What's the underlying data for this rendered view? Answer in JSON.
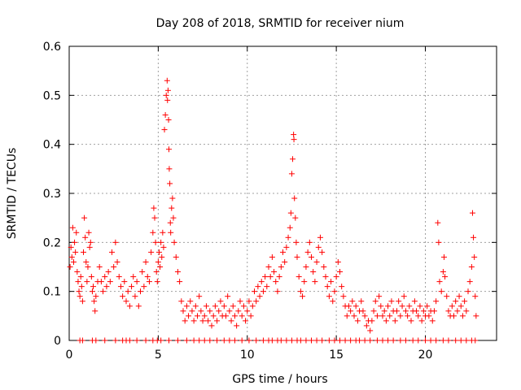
{
  "chart_data": {
    "type": "scatter",
    "title": "Day 208 of 2018, SRMTID for receiver nium",
    "xlabel": "GPS time / hours",
    "ylabel": "SRMTID / TECUs",
    "xlim": [
      0,
      24
    ],
    "ylim": [
      0,
      0.6
    ],
    "xticks": [
      0,
      5,
      10,
      15,
      20
    ],
    "yticks": [
      0,
      0.1,
      0.2,
      0.3,
      0.4,
      0.5,
      0.6
    ],
    "xtick_labels": [
      "0",
      "5",
      "10",
      "15",
      "20"
    ],
    "ytick_labels": [
      "0",
      "0.1",
      "0.2",
      "0.3",
      "0.4",
      "0.5",
      "0.6"
    ],
    "grid": true,
    "marker": "+",
    "color": "#ff0000",
    "series": [
      {
        "name": "SRMTID",
        "points": [
          [
            0.05,
            0.15
          ],
          [
            0.1,
            0.19
          ],
          [
            0.15,
            0.17
          ],
          [
            0.2,
            0.23
          ],
          [
            0.25,
            0.16
          ],
          [
            0.3,
            0.2
          ],
          [
            0.35,
            0.18
          ],
          [
            0.4,
            0.22
          ],
          [
            0.45,
            0.14
          ],
          [
            0.5,
            0.12
          ],
          [
            0.55,
            0.1
          ],
          [
            0.6,
            0.09
          ],
          [
            0.65,
            0.13
          ],
          [
            0.7,
            0.11
          ],
          [
            0.75,
            0.08
          ],
          [
            0.8,
            0.18
          ],
          [
            0.85,
            0.25
          ],
          [
            0.9,
            0.21
          ],
          [
            0.95,
            0.16
          ],
          [
            1.0,
            0.12
          ],
          [
            1.05,
            0.15
          ],
          [
            1.1,
            0.22
          ],
          [
            1.15,
            0.19
          ],
          [
            1.2,
            0.2
          ],
          [
            1.25,
            0.13
          ],
          [
            1.3,
            0.1
          ],
          [
            1.35,
            0.11
          ],
          [
            1.4,
            0.08
          ],
          [
            1.45,
            0.06
          ],
          [
            1.5,
            0.09
          ],
          [
            1.6,
            0.12
          ],
          [
            1.7,
            0.15
          ],
          [
            1.8,
            0.12
          ],
          [
            1.9,
            0.1
          ],
          [
            2.0,
            0.13
          ],
          [
            2.1,
            0.11
          ],
          [
            2.2,
            0.14
          ],
          [
            2.3,
            0.12
          ],
          [
            2.4,
            0.18
          ],
          [
            2.5,
            0.15
          ],
          [
            2.6,
            0.2
          ],
          [
            2.7,
            0.16
          ],
          [
            2.8,
            0.13
          ],
          [
            2.9,
            0.11
          ],
          [
            3.0,
            0.09
          ],
          [
            3.1,
            0.12
          ],
          [
            3.2,
            0.08
          ],
          [
            3.3,
            0.1
          ],
          [
            3.4,
            0.07
          ],
          [
            3.5,
            0.11
          ],
          [
            3.6,
            0.13
          ],
          [
            3.7,
            0.09
          ],
          [
            3.8,
            0.12
          ],
          [
            3.9,
            0.07
          ],
          [
            4.0,
            0.1
          ],
          [
            4.1,
            0.14
          ],
          [
            4.2,
            0.11
          ],
          [
            4.3,
            0.16
          ],
          [
            4.4,
            0.13
          ],
          [
            4.5,
            0.12
          ],
          [
            4.6,
            0.18
          ],
          [
            4.7,
            0.22
          ],
          [
            4.75,
            0.27
          ],
          [
            4.8,
            0.25
          ],
          [
            4.85,
            0.2
          ],
          [
            4.9,
            0.14
          ],
          [
            4.95,
            0.12
          ],
          [
            5.0,
            0.16
          ],
          [
            5.05,
            0.18
          ],
          [
            5.1,
            0.15
          ],
          [
            5.15,
            0.2
          ],
          [
            5.2,
            0.17
          ],
          [
            5.25,
            0.22
          ],
          [
            5.3,
            0.19
          ],
          [
            5.35,
            0.43
          ],
          [
            5.4,
            0.46
          ],
          [
            5.45,
            0.5
          ],
          [
            5.5,
            0.53
          ],
          [
            5.52,
            0.49
          ],
          [
            5.55,
            0.51
          ],
          [
            5.58,
            0.45
          ],
          [
            5.6,
            0.39
          ],
          [
            5.62,
            0.35
          ],
          [
            5.65,
            0.32
          ],
          [
            5.68,
            0.24
          ],
          [
            5.7,
            0.22
          ],
          [
            5.75,
            0.27
          ],
          [
            5.8,
            0.29
          ],
          [
            5.85,
            0.25
          ],
          [
            5.9,
            0.2
          ],
          [
            6.0,
            0.17
          ],
          [
            6.1,
            0.14
          ],
          [
            6.2,
            0.12
          ],
          [
            6.3,
            0.08
          ],
          [
            6.4,
            0.06
          ],
          [
            6.5,
            0.04
          ],
          [
            6.6,
            0.07
          ],
          [
            6.7,
            0.05
          ],
          [
            6.8,
            0.08
          ],
          [
            6.9,
            0.06
          ],
          [
            7.0,
            0.04
          ],
          [
            7.1,
            0.07
          ],
          [
            7.2,
            0.05
          ],
          [
            7.3,
            0.09
          ],
          [
            7.4,
            0.06
          ],
          [
            7.5,
            0.04
          ],
          [
            7.6,
            0.05
          ],
          [
            7.7,
            0.07
          ],
          [
            7.8,
            0.04
          ],
          [
            7.9,
            0.06
          ],
          [
            8.0,
            0.03
          ],
          [
            8.1,
            0.05
          ],
          [
            8.2,
            0.07
          ],
          [
            8.3,
            0.04
          ],
          [
            8.4,
            0.06
          ],
          [
            8.5,
            0.08
          ],
          [
            8.6,
            0.05
          ],
          [
            8.7,
            0.07
          ],
          [
            8.8,
            0.05
          ],
          [
            8.9,
            0.09
          ],
          [
            9.0,
            0.06
          ],
          [
            9.1,
            0.04
          ],
          [
            9.2,
            0.07
          ],
          [
            9.3,
            0.05
          ],
          [
            9.4,
            0.03
          ],
          [
            9.5,
            0.06
          ],
          [
            9.6,
            0.08
          ],
          [
            9.7,
            0.05
          ],
          [
            9.8,
            0.07
          ],
          [
            9.9,
            0.04
          ],
          [
            10.0,
            0.06
          ],
          [
            10.1,
            0.08
          ],
          [
            10.2,
            0.05
          ],
          [
            10.3,
            0.07
          ],
          [
            10.4,
            0.1
          ],
          [
            10.5,
            0.08
          ],
          [
            10.6,
            0.11
          ],
          [
            10.7,
            0.09
          ],
          [
            10.8,
            0.12
          ],
          [
            10.9,
            0.1
          ],
          [
            11.0,
            0.13
          ],
          [
            11.1,
            0.11
          ],
          [
            11.2,
            0.15
          ],
          [
            11.3,
            0.13
          ],
          [
            11.4,
            0.17
          ],
          [
            11.5,
            0.14
          ],
          [
            11.6,
            0.12
          ],
          [
            11.7,
            0.1
          ],
          [
            11.8,
            0.13
          ],
          [
            11.9,
            0.15
          ],
          [
            12.0,
            0.18
          ],
          [
            12.1,
            0.16
          ],
          [
            12.2,
            0.19
          ],
          [
            12.3,
            0.21
          ],
          [
            12.4,
            0.23
          ],
          [
            12.45,
            0.26
          ],
          [
            12.5,
            0.34
          ],
          [
            12.55,
            0.37
          ],
          [
            12.6,
            0.42
          ],
          [
            12.62,
            0.41
          ],
          [
            12.65,
            0.29
          ],
          [
            12.7,
            0.25
          ],
          [
            12.75,
            0.2
          ],
          [
            12.8,
            0.17
          ],
          [
            12.9,
            0.13
          ],
          [
            13.0,
            0.1
          ],
          [
            13.1,
            0.09
          ],
          [
            13.2,
            0.12
          ],
          [
            13.3,
            0.15
          ],
          [
            13.4,
            0.18
          ],
          [
            13.5,
            0.2
          ],
          [
            13.6,
            0.17
          ],
          [
            13.7,
            0.14
          ],
          [
            13.8,
            0.12
          ],
          [
            13.9,
            0.16
          ],
          [
            14.0,
            0.19
          ],
          [
            14.1,
            0.21
          ],
          [
            14.2,
            0.18
          ],
          [
            14.3,
            0.15
          ],
          [
            14.4,
            0.13
          ],
          [
            14.5,
            0.11
          ],
          [
            14.6,
            0.09
          ],
          [
            14.7,
            0.12
          ],
          [
            14.8,
            0.08
          ],
          [
            14.9,
            0.1
          ],
          [
            15.0,
            0.13
          ],
          [
            15.1,
            0.16
          ],
          [
            15.2,
            0.14
          ],
          [
            15.3,
            0.11
          ],
          [
            15.4,
            0.09
          ],
          [
            15.5,
            0.07
          ],
          [
            15.6,
            0.05
          ],
          [
            15.7,
            0.07
          ],
          [
            15.8,
            0.06
          ],
          [
            15.9,
            0.08
          ],
          [
            16.0,
            0.05
          ],
          [
            16.1,
            0.07
          ],
          [
            16.2,
            0.04
          ],
          [
            16.3,
            0.06
          ],
          [
            16.4,
            0.08
          ],
          [
            16.5,
            0.06
          ],
          [
            16.6,
            0.05
          ],
          [
            16.7,
            0.03
          ],
          [
            16.8,
            0.04
          ],
          [
            16.9,
            0.02
          ],
          [
            17.0,
            0.04
          ],
          [
            17.1,
            0.06
          ],
          [
            17.2,
            0.08
          ],
          [
            17.3,
            0.05
          ],
          [
            17.4,
            0.09
          ],
          [
            17.5,
            0.07
          ],
          [
            17.6,
            0.05
          ],
          [
            17.7,
            0.06
          ],
          [
            17.8,
            0.04
          ],
          [
            17.9,
            0.07
          ],
          [
            18.0,
            0.05
          ],
          [
            18.1,
            0.08
          ],
          [
            18.2,
            0.06
          ],
          [
            18.3,
            0.04
          ],
          [
            18.4,
            0.06
          ],
          [
            18.5,
            0.08
          ],
          [
            18.6,
            0.05
          ],
          [
            18.7,
            0.07
          ],
          [
            18.8,
            0.09
          ],
          [
            18.9,
            0.06
          ],
          [
            19.0,
            0.05
          ],
          [
            19.1,
            0.07
          ],
          [
            19.2,
            0.04
          ],
          [
            19.3,
            0.06
          ],
          [
            19.4,
            0.08
          ],
          [
            19.5,
            0.06
          ],
          [
            19.6,
            0.05
          ],
          [
            19.7,
            0.07
          ],
          [
            19.8,
            0.04
          ],
          [
            19.9,
            0.06
          ],
          [
            20.0,
            0.05
          ],
          [
            20.1,
            0.07
          ],
          [
            20.2,
            0.05
          ],
          [
            20.3,
            0.06
          ],
          [
            20.4,
            0.04
          ],
          [
            20.5,
            0.06
          ],
          [
            20.6,
            0.08
          ],
          [
            20.7,
            0.24
          ],
          [
            20.75,
            0.2
          ],
          [
            20.8,
            0.12
          ],
          [
            20.9,
            0.1
          ],
          [
            21.0,
            0.14
          ],
          [
            21.05,
            0.17
          ],
          [
            21.1,
            0.13
          ],
          [
            21.2,
            0.09
          ],
          [
            21.3,
            0.06
          ],
          [
            21.4,
            0.05
          ],
          [
            21.5,
            0.07
          ],
          [
            21.6,
            0.05
          ],
          [
            21.7,
            0.08
          ],
          [
            21.8,
            0.06
          ],
          [
            21.9,
            0.09
          ],
          [
            22.0,
            0.07
          ],
          [
            22.1,
            0.05
          ],
          [
            22.2,
            0.08
          ],
          [
            22.3,
            0.06
          ],
          [
            22.4,
            0.1
          ],
          [
            22.5,
            0.12
          ],
          [
            22.6,
            0.15
          ],
          [
            22.65,
            0.26
          ],
          [
            22.7,
            0.21
          ],
          [
            22.75,
            0.17
          ],
          [
            22.8,
            0.09
          ],
          [
            22.85,
            0.05
          ]
        ]
      }
    ],
    "zero_points": [
      0.6,
      0.75,
      1.3,
      1.5,
      2.0,
      2.6,
      3.0,
      3.2,
      3.4,
      3.8,
      4.3,
      4.7,
      4.95,
      5.15,
      5.6,
      6.1,
      6.6,
      7.0,
      7.3,
      7.6,
      7.9,
      8.3,
      8.7,
      9.0,
      9.3,
      9.7,
      10.1,
      10.5,
      10.9,
      11.2,
      11.4,
      11.7,
      11.9,
      12.2,
      12.5,
      12.8,
      13.0,
      13.3,
      13.6,
      13.9,
      14.2,
      14.6,
      14.9,
      15.2,
      15.5,
      15.8,
      16.1,
      16.3,
      16.6,
      16.9,
      17.3,
      17.6,
      17.9,
      18.2,
      18.6,
      18.9,
      19.3,
      19.6,
      20.0,
      20.3,
      20.6,
      21.0,
      21.3,
      21.7,
      22.0,
      22.3,
      22.6,
      22.8
    ]
  }
}
